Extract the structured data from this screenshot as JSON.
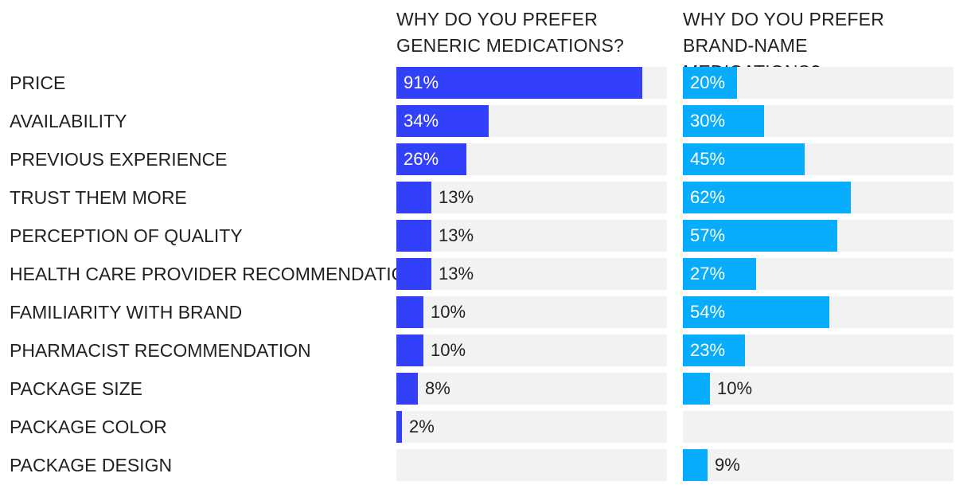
{
  "chart_data": {
    "type": "bar",
    "orientation": "horizontal",
    "value_format": "{v}%",
    "xlim": [
      0,
      100
    ],
    "grid": false,
    "categories": [
      "PRICE",
      "AVAILABILITY",
      "PREVIOUS EXPERIENCE",
      "TRUST THEM MORE",
      "PERCEPTION OF QUALITY",
      "HEALTH CARE PROVIDER RECOMMENDATION",
      "FAMILIARITY WITH BRAND",
      "PHARMACIST RECOMMENDATION",
      "PACKAGE SIZE",
      "PACKAGE COLOR",
      "PACKAGE DESIGN"
    ],
    "series": [
      {
        "title": "WHY DO YOU PREFER GENERIC MEDICATIONS?",
        "color": "#3340fa",
        "values": [
          91,
          34,
          26,
          13,
          13,
          13,
          10,
          10,
          8,
          2,
          null
        ]
      },
      {
        "title": "WHY DO YOU PREFER BRAND-NAME MEDICATIONS?",
        "color": "#07adfc",
        "values": [
          20,
          30,
          45,
          62,
          57,
          27,
          54,
          23,
          10,
          null,
          9
        ]
      }
    ],
    "track_color": "#f2f2f2"
  }
}
